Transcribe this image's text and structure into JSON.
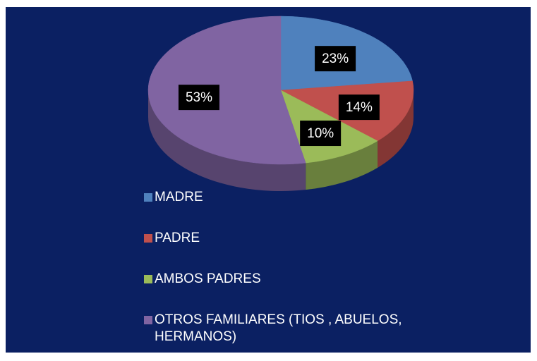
{
  "chart_data": {
    "type": "pie",
    "categories": [
      "MADRE",
      "PADRE",
      "AMBOS PADRES",
      "OTROS FAMILIARES (TIOS , ABUELOS, HERMANOS)"
    ],
    "values": [
      23,
      14,
      10,
      53
    ],
    "value_labels": [
      "23%",
      "14%",
      "10%",
      "53%"
    ],
    "colors": [
      "#4f81bd",
      "#c0504d",
      "#9bbb59",
      "#8064a2"
    ],
    "legend": "bottom"
  }
}
